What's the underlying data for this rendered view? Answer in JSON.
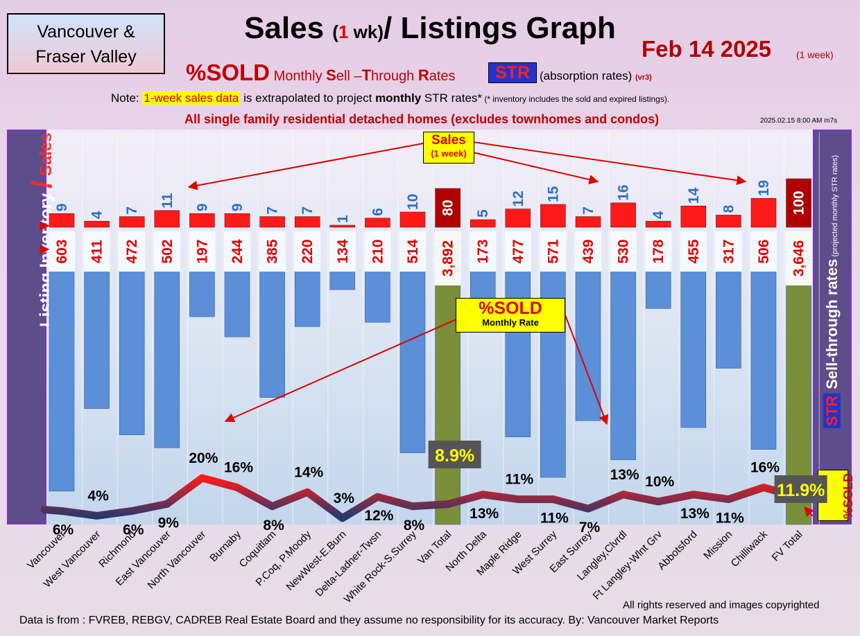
{
  "header": {
    "region_line1": "Vancouver &",
    "region_line2": "Fraser Valley",
    "title_main": "Sales ",
    "title_paren_open": "(",
    "title_num": "1",
    "title_unit": " wk)",
    "title_rest": "/ Listings Graph",
    "date": "Feb 14  2025",
    "date_note": "(1 week)",
    "subtitle_sold": "%SOLD",
    "subtitle_monthly": " Monthly ",
    "subtitle_S": "S",
    "subtitle_ell": "ell –",
    "subtitle_T": "T",
    "subtitle_hrough": "hrough ",
    "subtitle_R": "R",
    "subtitle_ates": "ates",
    "str_badge": "STR",
    "absorption": "(absorption rates)",
    "version": "(vr3)",
    "note_prefix": "Note: ",
    "note_highlight": "1-week sales data",
    "note_mid": " is extrapolated to project ",
    "note_bold": "monthly",
    "note_end": " STR rates*",
    "note_foot": " (* inventory includes the sold and expired listings).",
    "scope": "All single family residential detached homes (excludes townhomes and condos)",
    "timestamp": "2025.02.15 8:00 AM m7s"
  },
  "left_axis": {
    "part1": "Listing Inventory ",
    "slash": "/",
    "part2": " Sales",
    "part3": " (1 wk)"
  },
  "right_axis": {
    "str": "STR",
    "text": " Sell-through rates",
    "projected": " (projected monthly STR rates)",
    "sold": "%SOLD"
  },
  "callouts": {
    "sales_title": "Sales",
    "sales_sub": "(1 week)",
    "sold_title": "%SOLD",
    "sold_sub": "Monthly Rate"
  },
  "footer": {
    "rights": "All rights reserved and  images copyrighted",
    "source": "Data is from : FVREB, REBGV, CADREB Real Estate Board and they assume no responsibility for its accuracy. By: Vancouver Market Reports"
  },
  "colors": {
    "sales_bar": "#ff1a1a",
    "sales_total_bar": "#b00000",
    "inventory_bar": "#5b8fd8",
    "inventory_total_bar": "#7a8f3a",
    "sales_label": "#2f6fc0",
    "inventory_label": "#e00000",
    "total_rate_box": "#555555",
    "total_rate_text": "#ffff00"
  },
  "chart_data": {
    "type": "bar",
    "categories": [
      "Vancouver",
      "West Vancouver",
      "Richmond",
      "East Vancouver",
      "North Vancouver",
      "Burnaby",
      "Coquitlam",
      "P.Coq, P.Moody",
      "NewWest-E.Burn",
      "Delta-Ladner-Twsn",
      "White Rock-S.Surrey",
      "Van Total",
      "North Delta",
      "Maple Ridge",
      "West Surrey",
      "East Surrey",
      "Langley,Clvrdl",
      "Ft Langley-Wlnt Grv",
      "Abbotsford",
      "Mission",
      "Chilliwack",
      "FV Total"
    ],
    "series": [
      {
        "name": "Sales",
        "values": [
          9,
          4,
          7,
          11,
          9,
          9,
          7,
          7,
          1,
          6,
          10,
          80,
          5,
          12,
          15,
          7,
          16,
          4,
          14,
          8,
          19,
          100
        ]
      },
      {
        "name": "Listing Inventory",
        "values": [
          603,
          411,
          472,
          502,
          197,
          244,
          385,
          220,
          134,
          210,
          514,
          3892,
          173,
          477,
          571,
          439,
          530,
          178,
          455,
          317,
          506,
          3646
        ]
      },
      {
        "name": "%SOLD",
        "values": [
          6,
          4,
          6,
          9,
          20,
          16,
          8,
          14,
          3,
          12,
          8,
          8.9,
          13,
          11,
          11,
          7,
          13,
          10,
          13,
          11,
          16,
          11.9
        ]
      }
    ],
    "sales_labels": [
      "9",
      "4",
      "7",
      "11",
      "9",
      "9",
      "7",
      "7",
      "1",
      "6",
      "10",
      "80",
      "5",
      "12",
      "15",
      "7",
      "16",
      "4",
      "14",
      "8",
      "19",
      "100"
    ],
    "inventory_labels": [
      "603",
      "411",
      "472",
      "502",
      "197",
      "244",
      "385",
      "220",
      "134",
      "210",
      "514",
      "3,892",
      "173",
      "477",
      "571",
      "439",
      "530",
      "178",
      "455",
      "317",
      "506",
      "3,646"
    ],
    "rate_labels": [
      "6%",
      "4%",
      "6%",
      "9%",
      "20%",
      "16%",
      "8%",
      "14%",
      "3%",
      "12%",
      "8%",
      "8.9%",
      "13%",
      "11%",
      "11%",
      "7%",
      "13%",
      "10%",
      "13%",
      "11%",
      "16%",
      "11.9%"
    ],
    "total_indices": [
      11,
      21
    ]
  }
}
